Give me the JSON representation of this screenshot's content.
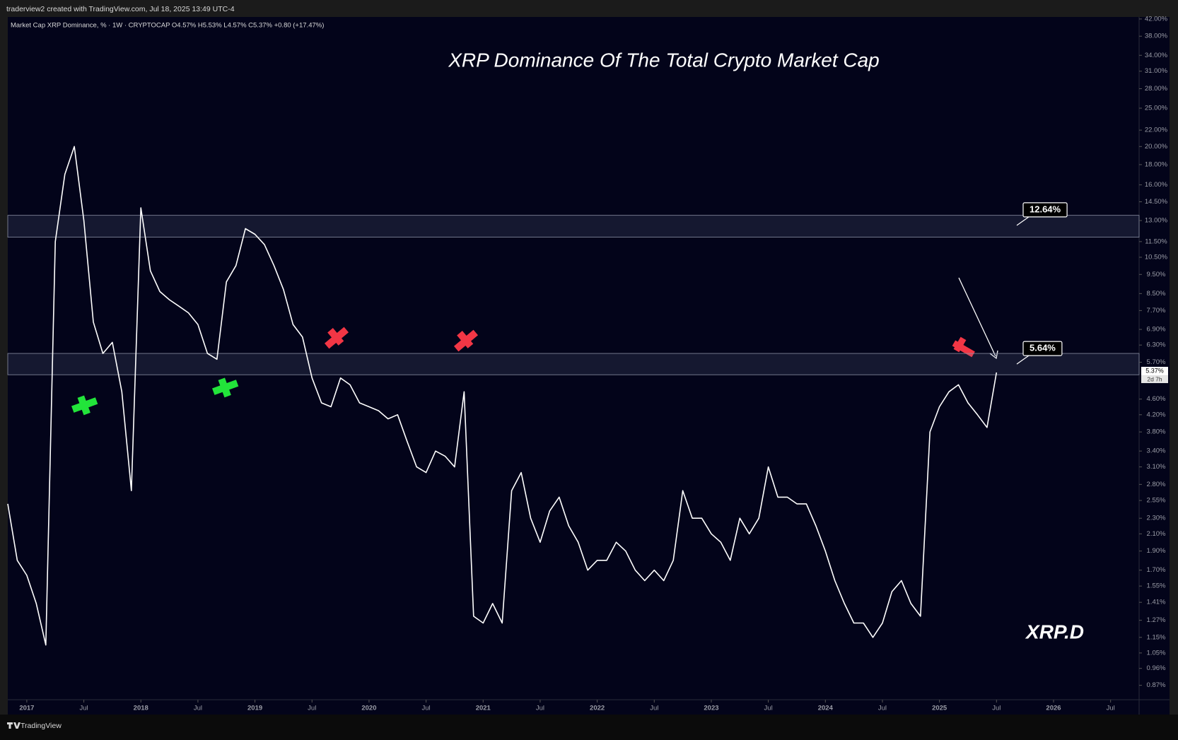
{
  "header": "traderview2 created with TradingView.com, Jul 18, 2025 13:49 UTC-4",
  "footer": "TradingView",
  "chart_data": {
    "type": "line",
    "legend_text": "Market Cap XRP Dominance, % · 1W · CRYPTOCAP  O4.57%  H5.53%  L4.57%  C5.37%  +0.80 (+17.47%)",
    "title": "XRP Dominance Of The Total Crypto Market Cap",
    "watermark": "XRP.D",
    "log_scale": true,
    "grid": false,
    "color": "#ffffff",
    "background": "#03041a",
    "xlim": [
      "2016-11",
      "2026-10"
    ],
    "xticks": [
      {
        "value": "2017-01",
        "label": "2017"
      },
      {
        "value": "2017-07",
        "label": "Jul"
      },
      {
        "value": "2018-01",
        "label": "2018"
      },
      {
        "value": "2018-07",
        "label": "Jul"
      },
      {
        "value": "2019-01",
        "label": "2019"
      },
      {
        "value": "2019-07",
        "label": "Jul"
      },
      {
        "value": "2020-01",
        "label": "2020"
      },
      {
        "value": "2020-07",
        "label": "Jul"
      },
      {
        "value": "2021-01",
        "label": "2021"
      },
      {
        "value": "2021-07",
        "label": "Jul"
      },
      {
        "value": "2022-01",
        "label": "2022"
      },
      {
        "value": "2022-07",
        "label": "Jul"
      },
      {
        "value": "2023-01",
        "label": "2023"
      },
      {
        "value": "2023-07",
        "label": "Jul"
      },
      {
        "value": "2024-01",
        "label": "2024"
      },
      {
        "value": "2024-07",
        "label": "Jul"
      },
      {
        "value": "2025-01",
        "label": "2025"
      },
      {
        "value": "2025-07",
        "label": "Jul"
      },
      {
        "value": "2026-01",
        "label": "2026"
      },
      {
        "value": "2026-07",
        "label": "Jul"
      }
    ],
    "ylim": [
      0.8,
      42.5
    ],
    "yticks": [
      {
        "value": 42,
        "label": "42.00%"
      },
      {
        "value": 38,
        "label": "38.00%"
      },
      {
        "value": 34,
        "label": "34.00%"
      },
      {
        "value": 31,
        "label": "31.00%"
      },
      {
        "value": 28,
        "label": "28.00%"
      },
      {
        "value": 25,
        "label": "25.00%"
      },
      {
        "value": 22,
        "label": "22.00%"
      },
      {
        "value": 20,
        "label": "20.00%"
      },
      {
        "value": 18,
        "label": "18.00%"
      },
      {
        "value": 16,
        "label": "16.00%"
      },
      {
        "value": 14.5,
        "label": "14.50%"
      },
      {
        "value": 13,
        "label": "13.00%"
      },
      {
        "value": 11.5,
        "label": "11.50%"
      },
      {
        "value": 10.5,
        "label": "10.50%"
      },
      {
        "value": 9.5,
        "label": "9.50%"
      },
      {
        "value": 8.5,
        "label": "8.50%"
      },
      {
        "value": 7.7,
        "label": "7.70%"
      },
      {
        "value": 6.9,
        "label": "6.90%"
      },
      {
        "value": 6.3,
        "label": "6.30%"
      },
      {
        "value": 5.7,
        "label": "5.70%"
      },
      {
        "value": 4.6,
        "label": "4.60%"
      },
      {
        "value": 4.2,
        "label": "4.20%"
      },
      {
        "value": 3.8,
        "label": "3.80%"
      },
      {
        "value": 3.4,
        "label": "3.40%"
      },
      {
        "value": 3.1,
        "label": "3.10%"
      },
      {
        "value": 2.8,
        "label": "2.80%"
      },
      {
        "value": 2.55,
        "label": "2.55%"
      },
      {
        "value": 2.3,
        "label": "2.30%"
      },
      {
        "value": 2.1,
        "label": "2.10%"
      },
      {
        "value": 1.9,
        "label": "1.90%"
      },
      {
        "value": 1.7,
        "label": "1.70%"
      },
      {
        "value": 1.55,
        "label": "1.55%"
      },
      {
        "value": 1.41,
        "label": "1.41%"
      },
      {
        "value": 1.27,
        "label": "1.27%"
      },
      {
        "value": 1.15,
        "label": "1.15%"
      },
      {
        "value": 1.05,
        "label": "1.05%"
      },
      {
        "value": 0.96,
        "label": "0.96%"
      },
      {
        "value": 0.87,
        "label": "0.87%"
      }
    ],
    "x": [
      "2016-11",
      "2016-12",
      "2017-01",
      "2017-02",
      "2017-03",
      "2017-04",
      "2017-05",
      "2017-06",
      "2017-07",
      "2017-08",
      "2017-09",
      "2017-10",
      "2017-11",
      "2017-12",
      "2018-01",
      "2018-02",
      "2018-03",
      "2018-04",
      "2018-05",
      "2018-06",
      "2018-07",
      "2018-08",
      "2018-09",
      "2018-10",
      "2018-11",
      "2018-12",
      "2019-01",
      "2019-02",
      "2019-03",
      "2019-04",
      "2019-05",
      "2019-06",
      "2019-07",
      "2019-08",
      "2019-09",
      "2019-10",
      "2019-11",
      "2019-12",
      "2020-01",
      "2020-02",
      "2020-03",
      "2020-04",
      "2020-05",
      "2020-06",
      "2020-07",
      "2020-08",
      "2020-09",
      "2020-10",
      "2020-11",
      "2020-12",
      "2021-01",
      "2021-02",
      "2021-03",
      "2021-04",
      "2021-05",
      "2021-06",
      "2021-07",
      "2021-08",
      "2021-09",
      "2021-10",
      "2021-11",
      "2021-12",
      "2022-01",
      "2022-02",
      "2022-03",
      "2022-04",
      "2022-05",
      "2022-06",
      "2022-07",
      "2022-08",
      "2022-09",
      "2022-10",
      "2022-11",
      "2022-12",
      "2023-01",
      "2023-02",
      "2023-03",
      "2023-04",
      "2023-05",
      "2023-06",
      "2023-07",
      "2023-08",
      "2023-09",
      "2023-10",
      "2023-11",
      "2023-12",
      "2024-01",
      "2024-02",
      "2024-03",
      "2024-04",
      "2024-05",
      "2024-06",
      "2024-07",
      "2024-08",
      "2024-09",
      "2024-10",
      "2024-11",
      "2024-12",
      "2025-01",
      "2025-02",
      "2025-03",
      "2025-04",
      "2025-05",
      "2025-06",
      "2025-07"
    ],
    "values": [
      2.5,
      1.8,
      1.65,
      1.4,
      1.1,
      11.5,
      17,
      20,
      13,
      7.2,
      6.0,
      6.4,
      4.8,
      2.7,
      14,
      9.7,
      8.6,
      8.2,
      7.9,
      7.6,
      7.1,
      6.0,
      5.8,
      9.1,
      10,
      12.4,
      12,
      11.3,
      10,
      8.7,
      7.1,
      6.6,
      5.2,
      4.5,
      4.4,
      5.2,
      5.0,
      4.5,
      4.4,
      4.3,
      4.1,
      4.2,
      3.6,
      3.1,
      3.0,
      3.4,
      3.3,
      3.1,
      4.8,
      1.3,
      1.25,
      1.4,
      1.25,
      2.7,
      3.0,
      2.3,
      2.0,
      2.4,
      2.6,
      2.2,
      2.0,
      1.7,
      1.8,
      1.8,
      2.0,
      1.9,
      1.7,
      1.6,
      1.7,
      1.6,
      1.8,
      2.7,
      2.3,
      2.3,
      2.1,
      2.0,
      1.8,
      2.3,
      2.1,
      2.3,
      3.1,
      2.6,
      2.6,
      2.5,
      2.5,
      2.2,
      1.9,
      1.6,
      1.4,
      1.25,
      1.25,
      1.15,
      1.25,
      1.5,
      1.6,
      1.4,
      1.3,
      3.8,
      4.4,
      4.8,
      5.0,
      4.5,
      4.2,
      3.9,
      5.37
    ],
    "bands": [
      [
        11.8,
        13.4
      ],
      [
        5.3,
        6.0
      ]
    ],
    "callouts": [
      {
        "value": 12.64,
        "label": "12.64%"
      },
      {
        "value": 5.64,
        "label": "5.64%"
      }
    ],
    "last_price": {
      "value": 5.37,
      "label": "5.37%"
    },
    "countdown": "2d 7h"
  }
}
